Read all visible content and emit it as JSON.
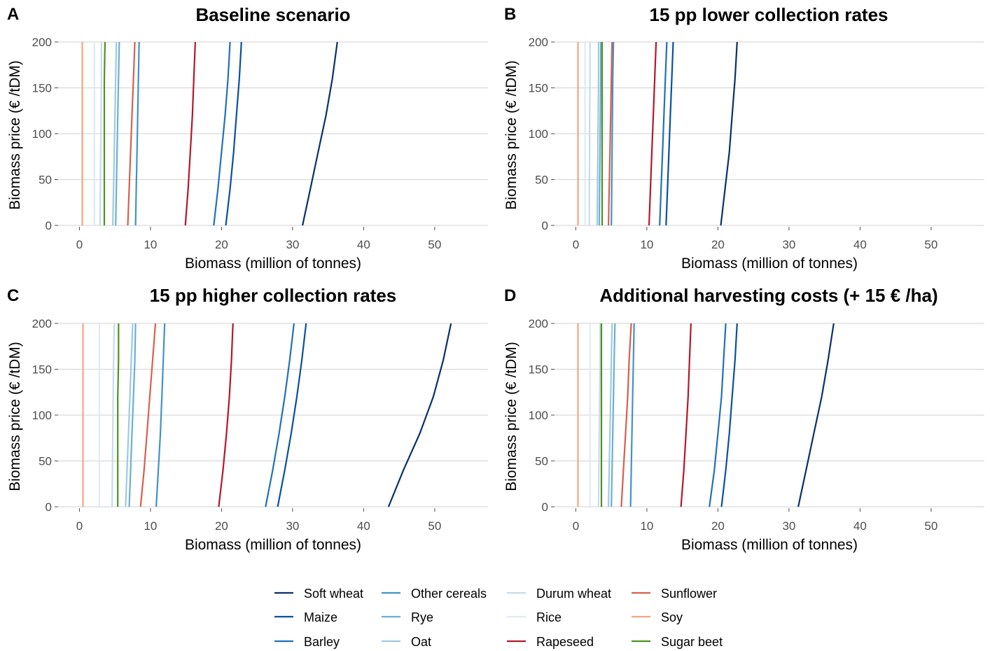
{
  "chart_data": [
    {
      "type": "line",
      "panel": "A",
      "title": "Baseline scenario",
      "xlabel": "Biomass (million of tonnes)",
      "ylabel": "Biomass price (€ /tDM)",
      "xlim": [
        -3,
        57.5
      ],
      "ylim": [
        0,
        200
      ],
      "xticks": [
        0,
        10,
        20,
        30,
        40,
        50
      ],
      "yticks": [
        0,
        50,
        100,
        150,
        200
      ],
      "series": [
        {
          "name": "Soft wheat",
          "x": [
            31.4,
            32.5,
            33.6,
            34.7,
            35.6,
            36.3
          ],
          "y": [
            0,
            40,
            80,
            120,
            160,
            200
          ]
        },
        {
          "name": "Maize",
          "x": [
            20.6,
            21.2,
            21.7,
            22.1,
            22.5,
            22.8
          ],
          "y": [
            0,
            40,
            80,
            120,
            160,
            200
          ]
        },
        {
          "name": "Barley",
          "x": [
            18.9,
            19.5,
            20.0,
            20.5,
            20.9,
            21.2
          ],
          "y": [
            0,
            40,
            80,
            120,
            160,
            200
          ]
        },
        {
          "name": "Other cereals",
          "x": [
            7.9,
            8.0,
            8.1,
            8.2,
            8.3,
            8.4
          ],
          "y": [
            0,
            40,
            80,
            120,
            160,
            200
          ]
        },
        {
          "name": "Rye",
          "x": [
            5.1,
            5.2,
            5.3,
            5.4,
            5.5,
            5.6
          ],
          "y": [
            0,
            40,
            80,
            120,
            160,
            200
          ]
        },
        {
          "name": "Oat",
          "x": [
            4.7,
            4.8,
            4.9,
            5.0,
            5.1,
            5.2
          ],
          "y": [
            0,
            40,
            80,
            120,
            160,
            200
          ]
        },
        {
          "name": "Durum wheat",
          "x": [
            2.9,
            2.95,
            3.0,
            3.05,
            3.1,
            3.1
          ],
          "y": [
            0,
            40,
            80,
            120,
            160,
            200
          ]
        },
        {
          "name": "Rice",
          "x": [
            2.1,
            2.1,
            2.1,
            2.1,
            2.1,
            2.1
          ],
          "y": [
            0,
            40,
            80,
            120,
            160,
            200
          ]
        },
        {
          "name": "Rapeseed",
          "x": [
            14.9,
            15.3,
            15.6,
            15.9,
            16.1,
            16.3
          ],
          "y": [
            0,
            40,
            80,
            120,
            160,
            200
          ]
        },
        {
          "name": "Sunflower",
          "x": [
            6.8,
            7.0,
            7.2,
            7.4,
            7.6,
            7.8
          ],
          "y": [
            0,
            40,
            80,
            120,
            160,
            200
          ]
        },
        {
          "name": "Soy",
          "x": [
            0.4,
            0.4,
            0.4,
            0.4,
            0.4,
            0.4
          ],
          "y": [
            0,
            40,
            80,
            120,
            160,
            200
          ]
        },
        {
          "name": "Sugar beet",
          "x": [
            3.5,
            3.5,
            3.5,
            3.5,
            3.5,
            3.6
          ],
          "y": [
            0,
            40,
            80,
            120,
            160,
            200
          ]
        }
      ]
    },
    {
      "type": "line",
      "panel": "B",
      "title": "15 pp lower collection rates",
      "xlabel": "Biomass (million of tonnes)",
      "ylabel": "Biomass price (€ /tDM)",
      "xlim": [
        -3,
        57.5
      ],
      "ylim": [
        0,
        200
      ],
      "xticks": [
        0,
        10,
        20,
        30,
        40,
        50
      ],
      "yticks": [
        0,
        50,
        100,
        150,
        200
      ],
      "series": [
        {
          "name": "Soft wheat",
          "x": [
            20.4,
            21.0,
            21.6,
            22.0,
            22.4,
            22.7
          ],
          "y": [
            0,
            40,
            80,
            120,
            160,
            200
          ]
        },
        {
          "name": "Maize",
          "x": [
            12.7,
            12.9,
            13.1,
            13.3,
            13.5,
            13.7
          ],
          "y": [
            0,
            40,
            80,
            120,
            160,
            200
          ]
        },
        {
          "name": "Barley",
          "x": [
            11.8,
            12.0,
            12.2,
            12.4,
            12.6,
            12.8
          ],
          "y": [
            0,
            40,
            80,
            120,
            160,
            200
          ]
        },
        {
          "name": "Other cereals",
          "x": [
            5.0,
            5.05,
            5.1,
            5.15,
            5.2,
            5.3
          ],
          "y": [
            0,
            40,
            80,
            120,
            160,
            200
          ]
        },
        {
          "name": "Rye",
          "x": [
            3.3,
            3.35,
            3.4,
            3.45,
            3.5,
            3.5
          ],
          "y": [
            0,
            40,
            80,
            120,
            160,
            200
          ]
        },
        {
          "name": "Oat",
          "x": [
            3.0,
            3.05,
            3.1,
            3.15,
            3.2,
            3.2
          ],
          "y": [
            0,
            40,
            80,
            120,
            160,
            200
          ]
        },
        {
          "name": "Durum wheat",
          "x": [
            1.9,
            1.9,
            1.95,
            1.95,
            2.0,
            2.0
          ],
          "y": [
            0,
            40,
            80,
            120,
            160,
            200
          ]
        },
        {
          "name": "Rice",
          "x": [
            1.3,
            1.3,
            1.3,
            1.3,
            1.3,
            1.3
          ],
          "y": [
            0,
            40,
            80,
            120,
            160,
            200
          ]
        },
        {
          "name": "Rapeseed",
          "x": [
            10.3,
            10.5,
            10.7,
            10.9,
            11.1,
            11.3
          ],
          "y": [
            0,
            40,
            80,
            120,
            160,
            200
          ]
        },
        {
          "name": "Sunflower",
          "x": [
            4.6,
            4.7,
            4.8,
            4.9,
            5.0,
            5.1
          ],
          "y": [
            0,
            40,
            80,
            120,
            160,
            200
          ]
        },
        {
          "name": "Soy",
          "x": [
            0.3,
            0.3,
            0.3,
            0.3,
            0.3,
            0.3
          ],
          "y": [
            0,
            40,
            80,
            120,
            160,
            200
          ]
        },
        {
          "name": "Sugar beet",
          "x": [
            3.7,
            3.7,
            3.7,
            3.7,
            3.7,
            3.7
          ],
          "y": [
            0,
            40,
            80,
            120,
            160,
            200
          ]
        }
      ]
    },
    {
      "type": "line",
      "panel": "C",
      "title": "15 pp higher collection rates",
      "xlabel": "Biomass (million of tonnes)",
      "ylabel": "Biomass price (€ /tDM)",
      "xlim": [
        -3,
        57.5
      ],
      "ylim": [
        0,
        200
      ],
      "xticks": [
        0,
        10,
        20,
        30,
        40,
        50
      ],
      "yticks": [
        0,
        50,
        100,
        150,
        200
      ],
      "series": [
        {
          "name": "Soft wheat",
          "x": [
            43.5,
            45.6,
            47.9,
            49.8,
            51.2,
            52.3
          ],
          "y": [
            0,
            40,
            80,
            120,
            160,
            200
          ]
        },
        {
          "name": "Maize",
          "x": [
            27.9,
            28.9,
            29.8,
            30.6,
            31.3,
            31.9
          ],
          "y": [
            0,
            40,
            80,
            120,
            160,
            200
          ]
        },
        {
          "name": "Barley",
          "x": [
            26.2,
            27.2,
            28.1,
            28.9,
            29.6,
            30.2
          ],
          "y": [
            0,
            40,
            80,
            120,
            160,
            200
          ]
        },
        {
          "name": "Other cereals",
          "x": [
            10.8,
            11.1,
            11.4,
            11.6,
            11.8,
            12.0
          ],
          "y": [
            0,
            40,
            80,
            120,
            160,
            200
          ]
        },
        {
          "name": "Rye",
          "x": [
            7.0,
            7.2,
            7.4,
            7.6,
            7.8,
            7.9
          ],
          "y": [
            0,
            40,
            80,
            120,
            160,
            200
          ]
        },
        {
          "name": "Oat",
          "x": [
            6.5,
            6.7,
            6.9,
            7.1,
            7.3,
            7.5
          ],
          "y": [
            0,
            40,
            80,
            120,
            160,
            200
          ]
        },
        {
          "name": "Durum wheat",
          "x": [
            4.6,
            4.65,
            4.7,
            4.75,
            4.8,
            4.9
          ],
          "y": [
            0,
            40,
            80,
            120,
            160,
            200
          ]
        },
        {
          "name": "Rice",
          "x": [
            2.8,
            2.8,
            2.8,
            2.8,
            2.8,
            2.8
          ],
          "y": [
            0,
            40,
            80,
            120,
            160,
            200
          ]
        },
        {
          "name": "Rapeseed",
          "x": [
            19.6,
            20.2,
            20.7,
            21.1,
            21.4,
            21.6
          ],
          "y": [
            0,
            40,
            80,
            120,
            160,
            200
          ]
        },
        {
          "name": "Sunflower",
          "x": [
            8.6,
            9.1,
            9.5,
            9.9,
            10.3,
            10.7
          ],
          "y": [
            0,
            40,
            80,
            120,
            160,
            200
          ]
        },
        {
          "name": "Soy",
          "x": [
            0.5,
            0.5,
            0.5,
            0.5,
            0.5,
            0.5
          ],
          "y": [
            0,
            40,
            80,
            120,
            160,
            200
          ]
        },
        {
          "name": "Sugar beet",
          "x": [
            5.4,
            5.4,
            5.4,
            5.4,
            5.5,
            5.5
          ],
          "y": [
            0,
            40,
            80,
            120,
            160,
            200
          ]
        }
      ]
    },
    {
      "type": "line",
      "panel": "D",
      "title": "Additional harvesting costs (+ 15 € /ha)",
      "xlabel": "Biomass (million of tonnes)",
      "ylabel": "Biomass price (€ /tDM)",
      "xlim": [
        -3,
        57.5
      ],
      "ylim": [
        0,
        200
      ],
      "xticks": [
        0,
        10,
        20,
        30,
        40,
        50
      ],
      "yticks": [
        0,
        50,
        100,
        150,
        200
      ],
      "series": [
        {
          "name": "Soft wheat",
          "x": [
            31.3,
            32.4,
            33.5,
            34.6,
            35.5,
            36.3
          ],
          "y": [
            0,
            40,
            80,
            120,
            160,
            200
          ]
        },
        {
          "name": "Maize",
          "x": [
            20.5,
            21.1,
            21.6,
            22.0,
            22.4,
            22.7
          ],
          "y": [
            0,
            40,
            80,
            120,
            160,
            200
          ]
        },
        {
          "name": "Barley",
          "x": [
            18.8,
            19.5,
            20.0,
            20.5,
            20.8,
            21.1
          ],
          "y": [
            0,
            40,
            80,
            120,
            160,
            200
          ]
        },
        {
          "name": "Other cereals",
          "x": [
            7.7,
            7.8,
            7.9,
            8.0,
            8.1,
            8.2
          ],
          "y": [
            0,
            40,
            80,
            120,
            160,
            200
          ]
        },
        {
          "name": "Rye",
          "x": [
            5.0,
            5.1,
            5.2,
            5.3,
            5.4,
            5.5
          ],
          "y": [
            0,
            40,
            80,
            120,
            160,
            200
          ]
        },
        {
          "name": "Oat",
          "x": [
            4.6,
            4.7,
            4.8,
            4.9,
            5.0,
            5.1
          ],
          "y": [
            0,
            40,
            80,
            120,
            160,
            200
          ]
        },
        {
          "name": "Durum wheat",
          "x": [
            3.2,
            3.25,
            3.3,
            3.35,
            3.4,
            3.4
          ],
          "y": [
            0,
            40,
            80,
            120,
            160,
            200
          ]
        },
        {
          "name": "Rice",
          "x": [
            2.0,
            2.0,
            2.0,
            2.0,
            2.0,
            2.0
          ],
          "y": [
            0,
            40,
            80,
            120,
            160,
            200
          ]
        },
        {
          "name": "Rapeseed",
          "x": [
            14.8,
            15.2,
            15.5,
            15.8,
            16.0,
            16.2
          ],
          "y": [
            0,
            40,
            80,
            120,
            160,
            200
          ]
        },
        {
          "name": "Sunflower",
          "x": [
            6.4,
            6.7,
            7.0,
            7.3,
            7.5,
            7.8
          ],
          "y": [
            0,
            40,
            80,
            120,
            160,
            200
          ]
        },
        {
          "name": "Soy",
          "x": [
            0.3,
            0.3,
            0.3,
            0.3,
            0.3,
            0.3
          ],
          "y": [
            0,
            40,
            80,
            120,
            160,
            200
          ]
        },
        {
          "name": "Sugar beet",
          "x": [
            3.6,
            3.6,
            3.6,
            3.6,
            3.6,
            3.6
          ],
          "y": [
            0,
            40,
            80,
            120,
            160,
            200
          ]
        }
      ]
    }
  ],
  "legend": {
    "placement": "bottom",
    "entries": [
      {
        "name": "Soft wheat",
        "color": "#08306b"
      },
      {
        "name": "Maize",
        "color": "#08519c"
      },
      {
        "name": "Barley",
        "color": "#2171b5"
      },
      {
        "name": "Other cereals",
        "color": "#4292c6"
      },
      {
        "name": "Rye",
        "color": "#6baed6"
      },
      {
        "name": "Oat",
        "color": "#9ecae1"
      },
      {
        "name": "Durum wheat",
        "color": "#c6dbef"
      },
      {
        "name": "Rice",
        "color": "#deebf7"
      },
      {
        "name": "Rapeseed",
        "color": "#b2182b"
      },
      {
        "name": "Sunflower",
        "color": "#d6604d"
      },
      {
        "name": "Soy",
        "color": "#f4a582"
      },
      {
        "name": "Sugar beet",
        "color": "#4d9221"
      }
    ]
  }
}
